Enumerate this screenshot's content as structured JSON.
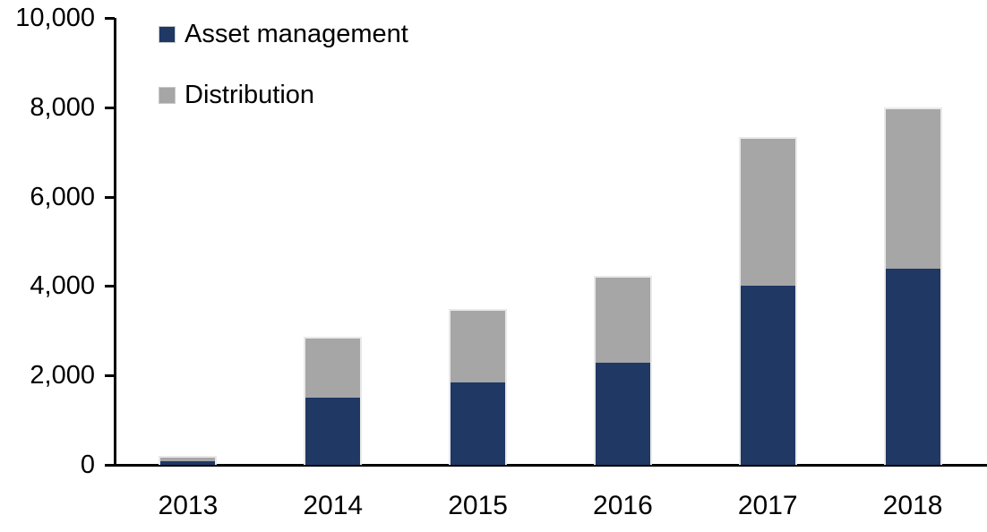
{
  "chart_data": {
    "type": "bar",
    "stacked": true,
    "title": "",
    "xlabel": "",
    "ylabel": "",
    "categories": [
      "2013",
      "2014",
      "2015",
      "2016",
      "2017",
      "2018"
    ],
    "series": [
      {
        "name": "Asset management",
        "color": "#1f3864",
        "values": [
          100,
          1520,
          1860,
          2300,
          4030,
          4410
        ]
      },
      {
        "name": "Distribution",
        "color": "#a6a6a6",
        "values": [
          100,
          1350,
          1630,
          1920,
          3310,
          3590
        ]
      }
    ],
    "totals": [
      200,
      2870,
      3490,
      4220,
      7340,
      8000
    ],
    "ylim": [
      0,
      10000
    ],
    "ytick_interval": 2000,
    "ytick_labels": [
      "0",
      "2,000",
      "4,000",
      "6,000",
      "8,000",
      "10,000"
    ],
    "grid": false,
    "legend_position": "top-left"
  },
  "legend": {
    "items": [
      {
        "label": "Asset management",
        "color": "#1f3864"
      },
      {
        "label": "Distribution",
        "color": "#a6a6a6"
      }
    ]
  },
  "colors": {
    "axis": "#000000",
    "background": "#ffffff",
    "bar_border": "#e9e9e9",
    "navy": "#1f3864",
    "gray": "#a6a6a6"
  }
}
